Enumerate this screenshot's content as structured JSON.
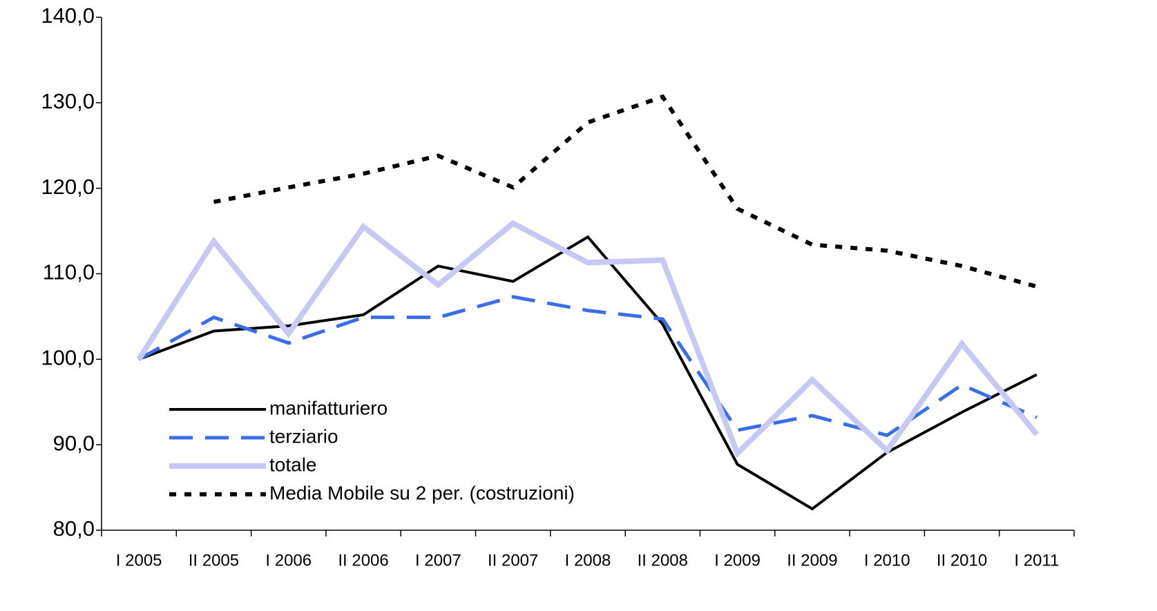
{
  "chart_data": {
    "type": "line",
    "categories": [
      "I 2005",
      "II 2005",
      "I 2006",
      "II 2006",
      "I 2007",
      "II 2007",
      "I 2008",
      "II 2008",
      "I 2009",
      "II 2009",
      "I 2010",
      "II 2010",
      "I 2011"
    ],
    "series": [
      {
        "name": "manifatturiero",
        "color": "#000000",
        "style": "solid",
        "values": [
          100.0,
          103.3,
          103.9,
          105.2,
          110.9,
          109.1,
          114.3,
          104.1,
          87.7,
          82.5,
          89.1,
          93.8,
          98.2
        ]
      },
      {
        "name": "terziario",
        "color": "#3a6ee8",
        "style": "dashed",
        "values": [
          100.0,
          104.9,
          101.9,
          104.9,
          104.9,
          107.3,
          105.7,
          104.7,
          91.7,
          93.4,
          91.1,
          97.0,
          93.2
        ]
      },
      {
        "name": "totale",
        "color": "#c8c8f5",
        "style": "thick",
        "values": [
          100.0,
          113.8,
          103.0,
          115.5,
          108.7,
          115.9,
          111.3,
          111.6,
          89.0,
          97.6,
          89.3,
          101.8,
          91.2
        ]
      },
      {
        "name": "Media Mobile su 2 per. (costruzioni)",
        "color": "#000000",
        "style": "dotted",
        "values": [
          null,
          118.4,
          120.1,
          121.7,
          123.8,
          120.1,
          127.7,
          130.7,
          117.6,
          113.4,
          112.7,
          110.9,
          108.5
        ]
      }
    ],
    "ylim": [
      80,
      140
    ],
    "yticks": [
      {
        "value": 80,
        "label": "80,0"
      },
      {
        "value": 90,
        "label": "90,0"
      },
      {
        "value": 100,
        "label": "100,0"
      },
      {
        "value": 110,
        "label": "110,0"
      },
      {
        "value": 120,
        "label": "120,0"
      },
      {
        "value": 130,
        "label": "130,0"
      },
      {
        "value": 140,
        "label": "140,0"
      }
    ],
    "grid": false,
    "legend": "lower left"
  }
}
